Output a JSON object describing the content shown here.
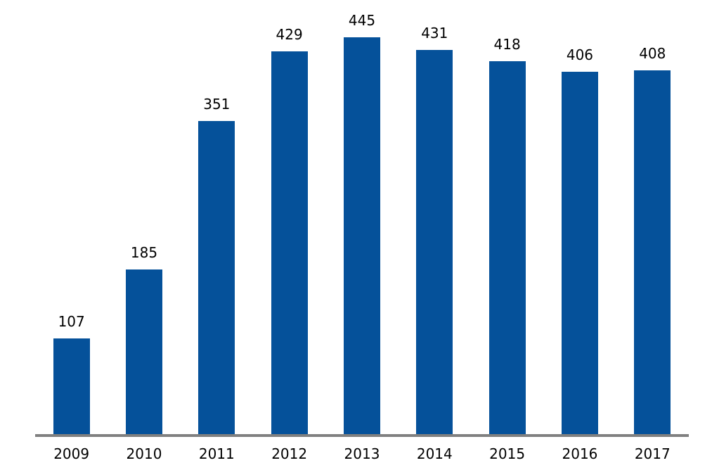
{
  "chart_data": {
    "type": "bar",
    "categories": [
      "2009",
      "2010",
      "2011",
      "2012",
      "2013",
      "2014",
      "2015",
      "2016",
      "2017"
    ],
    "values": [
      107,
      185,
      351,
      429,
      445,
      431,
      418,
      406,
      408
    ],
    "title": "",
    "xlabel": "",
    "ylabel": "",
    "ylim": [
      0,
      487
    ],
    "grid": false,
    "legend": false,
    "data_labels": true,
    "bar_color": "#05519A",
    "axis_line_color": "#808080",
    "label_color": "#000000",
    "background_color": "#FFFFFF"
  }
}
